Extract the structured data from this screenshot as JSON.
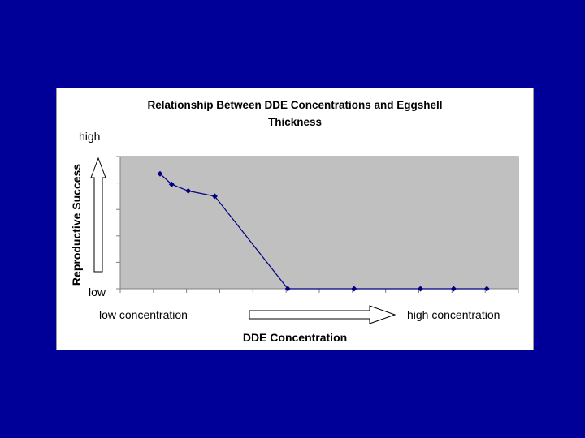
{
  "chart_data": {
    "type": "line",
    "title": "Relationship Between DDE Concentrations and Eggshell Thickness",
    "title_lines": [
      "Relationship Between DDE Concentrations and Eggshell",
      "Thickness"
    ],
    "xlabel": "DDE Concentration",
    "ylabel": "Reproductive Success",
    "y_high_label": "high",
    "y_low_label": "low",
    "x_low_label": "low concentration",
    "x_high_label": "high concentration",
    "x": [
      1.2,
      1.55,
      2.05,
      2.85,
      5.05,
      7.05,
      9.05,
      10.05,
      11.05
    ],
    "y": [
      4.35,
      3.95,
      3.7,
      3.5,
      0,
      0,
      0,
      0,
      0
    ],
    "xlim": [
      0,
      12
    ],
    "ylim": [
      0,
      5
    ],
    "y_gridlines": [
      0,
      1,
      2,
      3,
      4,
      5
    ],
    "series_color": "#000080",
    "plot_bg": "#c0c0c0",
    "grid": false
  }
}
